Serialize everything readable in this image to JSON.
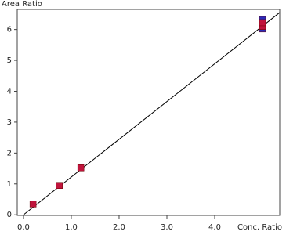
{
  "chart_data": {
    "type": "scatter",
    "x_label": "Conc. Ratio",
    "y_label": "Area Ratio",
    "xlim": [
      -0.13,
      5.36
    ],
    "ylim": [
      -0.02,
      6.65
    ],
    "xticks": [
      {
        "value": 0,
        "label": "0.0"
      },
      {
        "value": 1,
        "label": "1.0"
      },
      {
        "value": 2,
        "label": "2.0"
      },
      {
        "value": 3,
        "label": "3.0"
      },
      {
        "value": 4,
        "label": "4.0"
      }
    ],
    "yticks": [
      0,
      1,
      2,
      3,
      4,
      5,
      6
    ],
    "series": [
      {
        "color": "#2a2ab8",
        "x": [
          5.0,
          5.0
        ],
        "values": [
          6.02,
          6.32
        ]
      },
      {
        "color": "#c0143c",
        "x": [
          0.2,
          0.75,
          1.2,
          5.0,
          5.0
        ],
        "values": [
          0.35,
          0.95,
          1.52,
          6.1,
          6.22
        ]
      }
    ],
    "fit_line": {
      "color": "#000000",
      "x": [
        0,
        5.36
      ],
      "values": [
        0,
        6.55
      ]
    }
  }
}
